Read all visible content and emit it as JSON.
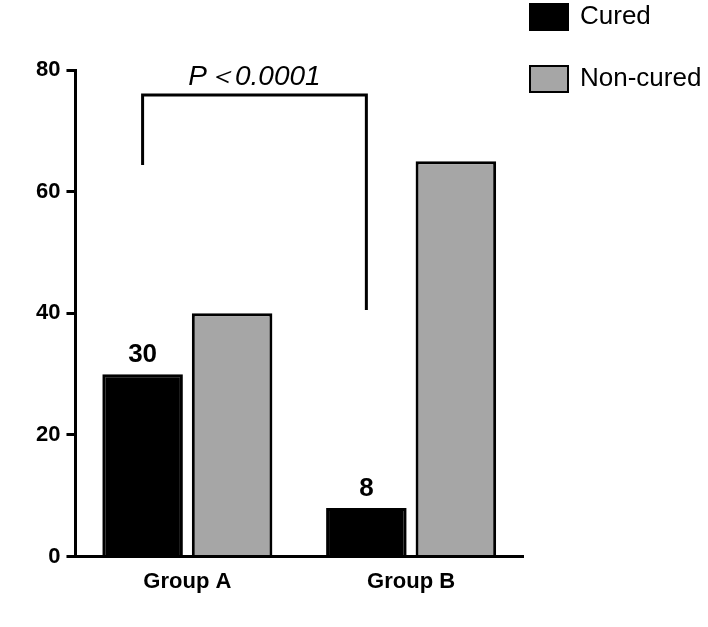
{
  "chart_data": {
    "type": "bar",
    "categories": [
      "Group A",
      "Group B"
    ],
    "series": [
      {
        "name": "Cured",
        "color": "#000000",
        "values": [
          30,
          8
        ],
        "data_labels": true
      },
      {
        "name": "Non-cured",
        "color": "#a6a6a6",
        "values": [
          40,
          65
        ]
      }
    ],
    "ylim": [
      0,
      80
    ],
    "yticks": [
      0,
      20,
      40,
      60,
      80
    ],
    "grid": false,
    "legend": "upper right",
    "annotations": [
      {
        "text": "P＜0.0001"
      }
    ]
  }
}
